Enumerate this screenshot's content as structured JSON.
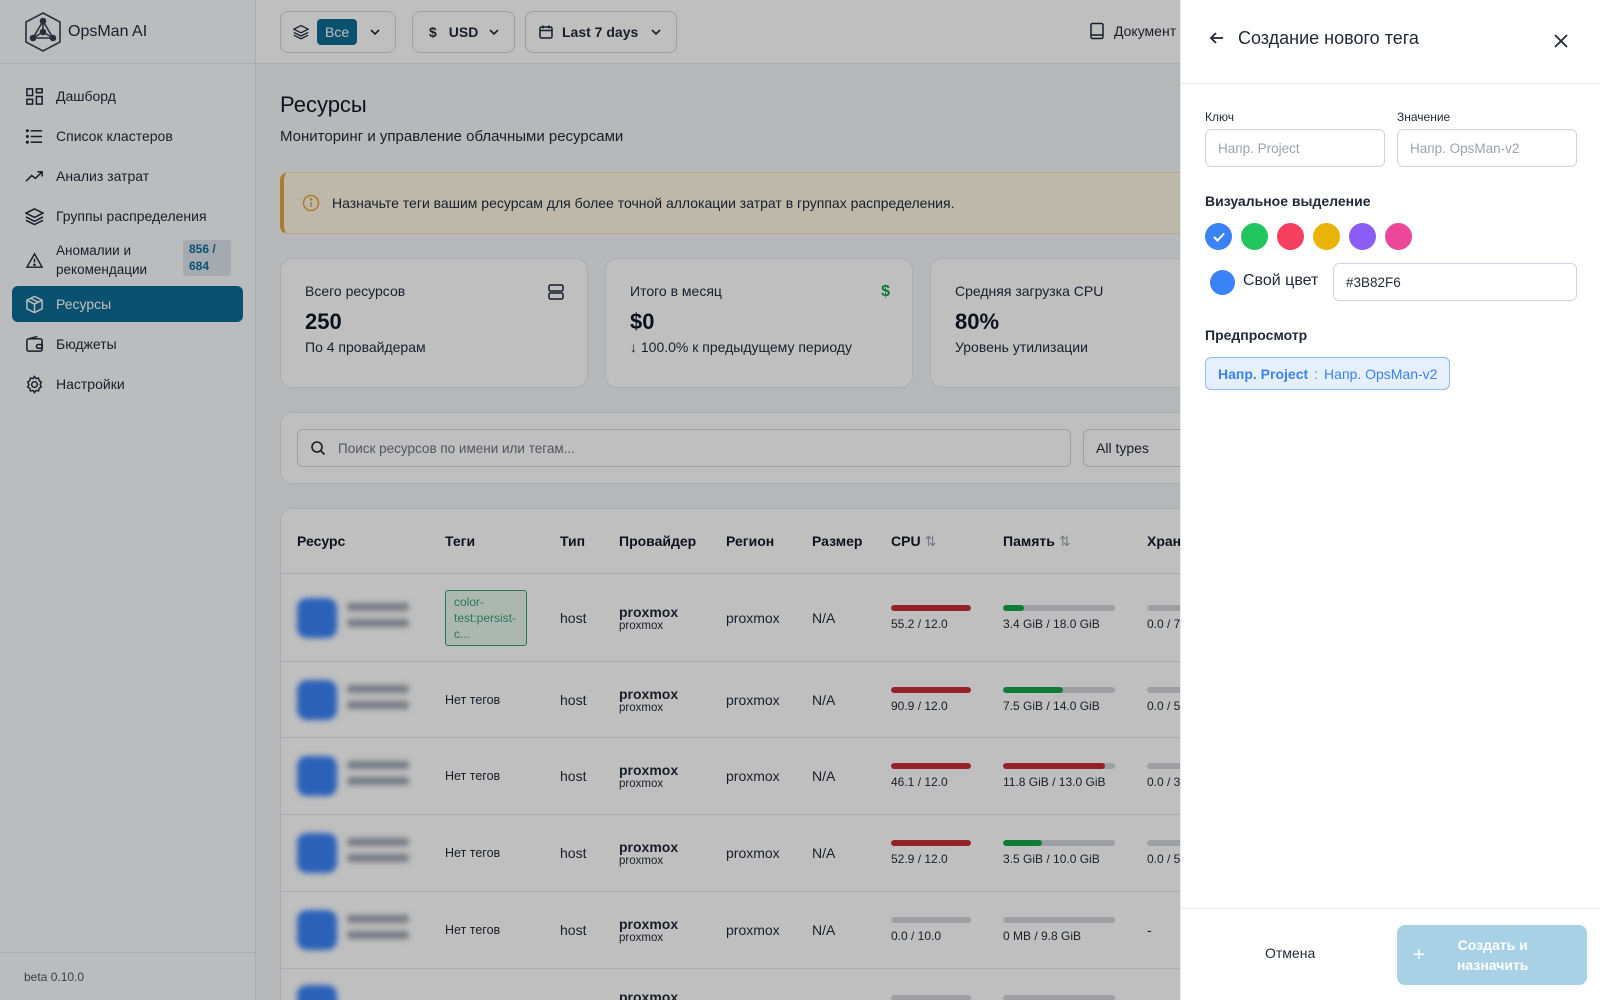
{
  "app": {
    "name": "OpsMan AI",
    "version": "beta 0.10.0"
  },
  "sidebar": {
    "items": [
      {
        "label": "Дашборд",
        "icon": "dashboard-icon"
      },
      {
        "label": "Список кластеров",
        "icon": "list-icon"
      },
      {
        "label": "Анализ затрат",
        "icon": "trend-icon"
      },
      {
        "label": "Группы распределения",
        "icon": "layers-icon"
      },
      {
        "label": "Аномалии и рекомендации",
        "icon": "warning-icon",
        "badge": "856 / 684"
      },
      {
        "label": "Ресурсы",
        "icon": "cube-icon",
        "active": true
      },
      {
        "label": "Бюджеты",
        "icon": "wallet-icon"
      },
      {
        "label": "Настройки",
        "icon": "gear-icon"
      }
    ]
  },
  "topbar": {
    "scope_label": "Все",
    "currency_symbol": "$",
    "currency": "USD",
    "period": "Last 7 days",
    "docs": "Документ"
  },
  "page": {
    "title": "Ресурсы",
    "subtitle": "Мониторинг и управление облачными ресурсами",
    "alert": "Назначьте теги вашим ресурсам для более точной аллокации затрат в группах распределения.",
    "alert_color": "#e5a93d"
  },
  "cards": [
    {
      "title": "Всего ресурсов",
      "value": "250",
      "sub": "По 4 провайдерам",
      "icon": "server-icon"
    },
    {
      "title": "Итого в месяц",
      "value": "$0",
      "sub": "↓ 100.0% к предыдущему периоду",
      "icon": "dollar-icon",
      "icon_text": "$"
    },
    {
      "title": "Средняя загрузка CPU",
      "value": "80%",
      "sub": "Уровень утилизации"
    }
  ],
  "search": {
    "placeholder": "Поиск ресурсов по имени или тегам...",
    "type_filter": "All types"
  },
  "table": {
    "columns": [
      "Ресурс",
      "Теги",
      "Тип",
      "Провайдер",
      "Регион",
      "Размер",
      "CPU",
      "Память",
      "Хран"
    ],
    "sort_glyph": "⇅",
    "rows": [
      {
        "tags": "color-test:persist-c...",
        "type": "host",
        "provider": "proxmox",
        "provider_sub": "proxmox",
        "region": "proxmox",
        "size": "N/A",
        "cpu_text": "55.2 / 12.0",
        "cpu_frac": 1.0,
        "cpu_color": "#c62d35",
        "mem_text": "3.4 GiB / 18.0 GiB",
        "mem_frac": 0.19,
        "mem_color": "#16a34a",
        "storage": "0.0 / 7"
      },
      {
        "tags": "Нет тегов",
        "type": "host",
        "provider": "proxmox",
        "provider_sub": "proxmox",
        "region": "proxmox",
        "size": "N/A",
        "cpu_text": "90.9 / 12.0",
        "cpu_frac": 1.0,
        "cpu_color": "#c62d35",
        "mem_text": "7.5 GiB / 14.0 GiB",
        "mem_frac": 0.54,
        "mem_color": "#16a34a",
        "storage": "0.0 / 5"
      },
      {
        "tags": "Нет тегов",
        "type": "host",
        "provider": "proxmox",
        "provider_sub": "proxmox",
        "region": "proxmox",
        "size": "N/A",
        "cpu_text": "46.1 / 12.0",
        "cpu_frac": 1.0,
        "cpu_color": "#c62d35",
        "mem_text": "11.8 GiB / 13.0 GiB",
        "mem_frac": 0.91,
        "mem_color": "#c62d35",
        "storage": "0.0 / 3"
      },
      {
        "tags": "Нет тегов",
        "type": "host",
        "provider": "proxmox",
        "provider_sub": "proxmox",
        "region": "proxmox",
        "size": "N/A",
        "cpu_text": "52.9 / 12.0",
        "cpu_frac": 1.0,
        "cpu_color": "#c62d35",
        "mem_text": "3.5 GiB / 10.0 GiB",
        "mem_frac": 0.35,
        "mem_color": "#16a34a",
        "storage": "0.0 / 5"
      },
      {
        "tags": "Нет тегов",
        "type": "host",
        "provider": "proxmox",
        "provider_sub": "proxmox",
        "region": "proxmox",
        "size": "N/A",
        "cpu_text": "0.0 / 10.0",
        "cpu_frac": 0.0,
        "cpu_color": "#c62d35",
        "mem_text": "0 MB / 9.8 GiB",
        "mem_frac": 0.0,
        "mem_color": "#16a34a",
        "storage": "-"
      },
      {
        "tags": "",
        "type": "",
        "provider": "proxmox",
        "provider_sub": "",
        "region": "",
        "size": "",
        "cpu_text": "",
        "cpu_frac": 0.0,
        "cpu_color": "#c62d35",
        "mem_text": "",
        "mem_frac": 0.0,
        "mem_color": "#16a34a",
        "storage": ""
      }
    ]
  },
  "drawer": {
    "title": "Создание нового тега",
    "key_label": "Ключ",
    "key_placeholder": "Напр. Project",
    "value_label": "Значение",
    "value_placeholder": "Напр. OpsMan-v2",
    "visual_label": "Визуальное выделение",
    "colors": [
      "#3b82f6",
      "#22c55e",
      "#f43f5e",
      "#eab308",
      "#8b5cf6",
      "#ec4899"
    ],
    "custom_color_label": "Свой цвет",
    "custom_color_value": "#3B82F6",
    "preview_label": "Предпросмотр",
    "preview_key": "Напр. Project",
    "preview_sep": ":",
    "preview_value": "Напр. OpsMan-v2",
    "cancel": "Отмена",
    "submit": "Создать и назначить"
  }
}
